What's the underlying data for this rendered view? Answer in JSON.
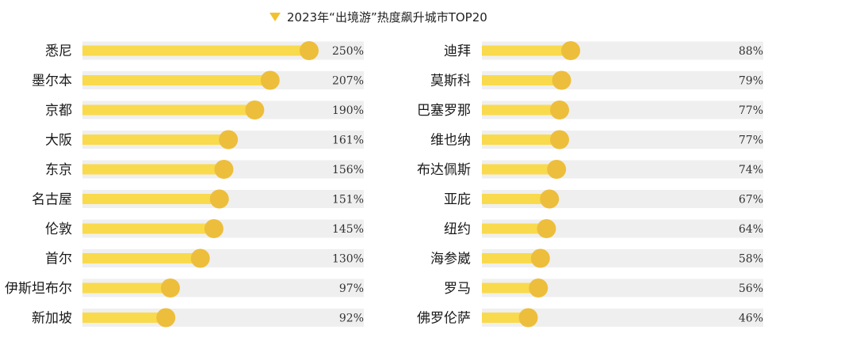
{
  "chart_data": {
    "type": "bar",
    "title": "2023年“出境游”热度飙升城市TOP20",
    "legend_marker_color": "#F2C12E",
    "bar_color": "#F9DA4D",
    "dot_color": "#EDBE3C",
    "track_color": "#EFEFEF",
    "value_format": "percent",
    "xlim": [
      0,
      250
    ],
    "panels": [
      {
        "categories": [
          "悉尼",
          "墨尔本",
          "京都",
          "大阪",
          "东京",
          "名古屋",
          "伦敦",
          "首尔",
          "伊斯坦布尔",
          "新加坡"
        ],
        "labels": [
          "250%",
          "207%",
          "190%",
          "161%",
          "156%",
          "151%",
          "145%",
          "130%",
          "97%",
          "92%"
        ],
        "values": [
          250,
          207,
          190,
          161,
          156,
          151,
          145,
          130,
          97,
          92
        ]
      },
      {
        "categories": [
          "迪拜",
          "莫斯科",
          "巴塞罗那",
          "维也纳",
          "布达佩斯",
          "亚庇",
          "纽约",
          "海参崴",
          "罗马",
          "佛罗伦萨"
        ],
        "labels": [
          "88%",
          "79%",
          "77%",
          "77%",
          "74%",
          "67%",
          "64%",
          "58%",
          "56%",
          "46%"
        ],
        "values": [
          88,
          79,
          77,
          77,
          74,
          67,
          64,
          58,
          56,
          46
        ]
      }
    ]
  }
}
